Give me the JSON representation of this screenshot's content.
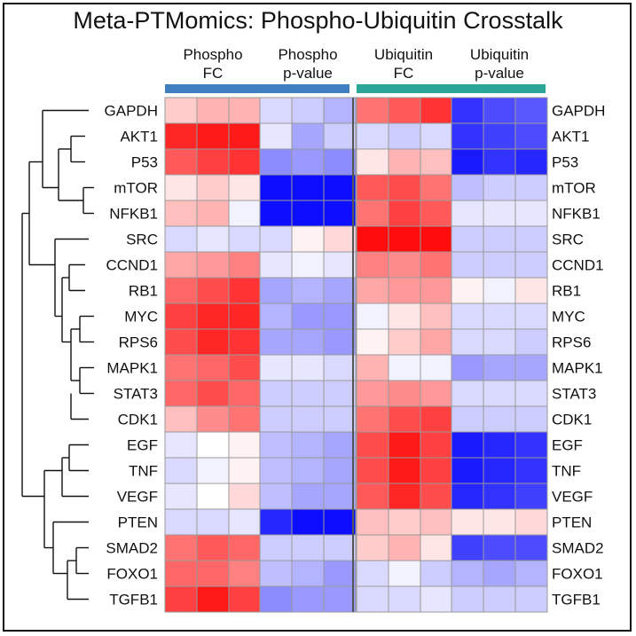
{
  "title": "Meta-PTMomics: Phospho-Ubiquitin Crosstalk",
  "chart_data": {
    "type": "heatmap",
    "title": "Meta-PTMomics: Phospho-Ubiquitin Crosstalk",
    "column_groups": [
      {
        "label_line1": "Phospho",
        "label_line2": "FC",
        "color": "#3f7fbf",
        "bar": "Phospho"
      },
      {
        "label_line1": "Phospho",
        "label_line2": "p-value",
        "color": "#3f7fbf",
        "bar": "Phospho"
      },
      {
        "label_line1": "Ubiquitin",
        "label_line2": "FC",
        "color": "#2aa596",
        "bar": "Ubiquitin"
      },
      {
        "label_line1": "Ubiquitin",
        "label_line2": "p-value",
        "color": "#2aa596",
        "bar": "Ubiquitin"
      }
    ],
    "columns_per_group": 3,
    "rows": [
      "GAPDH",
      "AKT1",
      "P53",
      "mTOR",
      "NFKB1",
      "SRC",
      "CCND1",
      "RB1",
      "MYC",
      "RPS6",
      "MAPK1",
      "STAT3",
      "CDK1",
      "EGF",
      "TNF",
      "VEGF",
      "PTEN",
      "SMAD2",
      "FOXO1",
      "TGFB1"
    ],
    "color_scale": {
      "low": "#0000ff",
      "mid": "#ffffff",
      "high": "#ff0000",
      "min": -1,
      "max": 1
    },
    "grid": true,
    "row_dendrogram": true,
    "values": [
      [
        0.2,
        0.3,
        0.3,
        -0.15,
        -0.2,
        -0.3,
        0.55,
        0.65,
        0.8,
        -0.8,
        -0.7,
        -0.65
      ],
      [
        0.85,
        0.9,
        0.9,
        -0.1,
        -0.35,
        -0.2,
        -0.15,
        -0.2,
        -0.15,
        -0.8,
        -0.75,
        -0.7
      ],
      [
        0.65,
        0.75,
        0.8,
        -0.45,
        -0.4,
        -0.45,
        0.1,
        0.3,
        0.25,
        -0.9,
        -0.8,
        -0.85
      ],
      [
        0.1,
        0.2,
        0.1,
        -0.95,
        -0.95,
        -0.95,
        0.65,
        0.7,
        0.55,
        -0.25,
        -0.2,
        -0.2
      ],
      [
        0.25,
        0.3,
        -0.05,
        -0.95,
        -0.95,
        -0.95,
        0.55,
        0.75,
        0.65,
        -0.1,
        -0.1,
        -0.1
      ],
      [
        -0.15,
        -0.1,
        -0.15,
        -0.15,
        0.05,
        0.15,
        0.95,
        0.95,
        0.95,
        -0.2,
        -0.2,
        -0.2
      ],
      [
        0.35,
        0.4,
        0.5,
        -0.1,
        -0.05,
        -0.1,
        0.5,
        0.45,
        0.55,
        -0.2,
        -0.2,
        -0.2
      ],
      [
        0.6,
        0.7,
        0.8,
        -0.35,
        -0.3,
        -0.35,
        0.35,
        0.4,
        0.4,
        0.05,
        -0.05,
        0.1
      ],
      [
        0.75,
        0.85,
        0.85,
        -0.3,
        -0.4,
        -0.4,
        -0.05,
        0.1,
        0.25,
        -0.15,
        -0.15,
        -0.15
      ],
      [
        0.7,
        0.85,
        0.8,
        -0.35,
        -0.35,
        -0.4,
        0.05,
        0.2,
        0.35,
        -0.15,
        -0.15,
        -0.2
      ],
      [
        0.55,
        0.6,
        0.7,
        -0.1,
        -0.1,
        -0.15,
        0.3,
        -0.05,
        -0.05,
        -0.4,
        -0.35,
        -0.35
      ],
      [
        0.6,
        0.7,
        0.6,
        -0.2,
        -0.2,
        -0.2,
        0.4,
        0.45,
        0.4,
        -0.15,
        -0.15,
        -0.15
      ],
      [
        0.25,
        0.45,
        0.55,
        -0.2,
        -0.2,
        -0.2,
        0.55,
        0.7,
        0.75,
        -0.2,
        -0.2,
        -0.2
      ],
      [
        -0.1,
        0.0,
        0.05,
        -0.25,
        -0.3,
        -0.35,
        0.7,
        0.9,
        0.75,
        -0.9,
        -0.85,
        -0.8
      ],
      [
        -0.15,
        -0.05,
        0.05,
        -0.25,
        -0.3,
        -0.35,
        0.7,
        0.9,
        0.75,
        -0.9,
        -0.85,
        -0.8
      ],
      [
        -0.1,
        0.0,
        0.15,
        -0.25,
        -0.35,
        -0.35,
        0.65,
        0.85,
        0.7,
        -0.85,
        -0.8,
        -0.75
      ],
      [
        -0.15,
        -0.15,
        -0.1,
        -0.85,
        -0.95,
        -0.95,
        0.25,
        0.2,
        0.25,
        0.1,
        0.1,
        0.15
      ],
      [
        0.55,
        0.65,
        0.6,
        -0.2,
        -0.2,
        -0.2,
        0.2,
        0.3,
        0.1,
        -0.75,
        -0.7,
        -0.7
      ],
      [
        0.6,
        0.6,
        0.5,
        -0.25,
        -0.3,
        -0.4,
        -0.15,
        -0.05,
        -0.2,
        -0.3,
        -0.35,
        -0.3
      ],
      [
        0.75,
        0.9,
        0.75,
        -0.45,
        -0.4,
        -0.4,
        -0.15,
        -0.15,
        -0.1,
        -0.2,
        -0.2,
        -0.2
      ]
    ]
  }
}
